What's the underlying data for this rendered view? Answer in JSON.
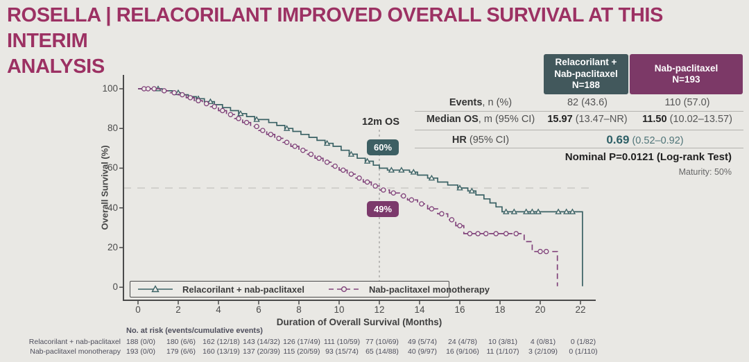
{
  "title": {
    "line1": "ROSELLA | RELACORILANT IMPROVED OVERALL SURVIVAL AT THIS INTERIM",
    "line2": "ANALYSIS"
  },
  "colors": {
    "background": "#e9e8e4",
    "title": "#9c3163",
    "teal": "#3a6164",
    "purple": "#80427a",
    "teal_header_bg": "#42585c",
    "purple_header_bg": "#7c3967",
    "badge_teal_bg": "#3d5f63",
    "badge_purple_bg": "#7b396b",
    "hr_value": "#2d5f66"
  },
  "stats_table": {
    "columns": [
      {
        "name_lines": [
          "Relacorilant +",
          "Nab-paclitaxel"
        ],
        "n": "N=188",
        "color": "#42585c"
      },
      {
        "name_lines": [
          "Nab-paclitaxel"
        ],
        "n": "N=193",
        "color": "#7c3967"
      }
    ],
    "rows": {
      "events": {
        "label_bold": "Events",
        "label_rest": ", n (%)",
        "col1": "82 (43.6)",
        "col2": "110 (57.0)"
      },
      "median": {
        "label_bold": "Median OS",
        "label_rest": ", m (95% CI)",
        "col1_num": "15.97",
        "col1_ci": "(13.47–NR)",
        "col2_num": "11.50",
        "col2_ci": "(10.02–13.57)"
      },
      "hr": {
        "label_bold": "HR",
        "label_rest": " (95% CI)",
        "value": "0.69",
        "ci": "(0.52–0.92)"
      }
    },
    "pvalue": "Nominal P=0.0121 (Log-rank Test)",
    "maturity": "Maturity: 50%"
  },
  "chart_data": {
    "type": "line",
    "subtype": "kaplan-meier-step",
    "title": "",
    "xlabel": "Duration of Overall Survival (Months)",
    "ylabel": "Overall Survival (%)",
    "xlim": [
      0,
      23.4
    ],
    "ylim": [
      0,
      100
    ],
    "xticks": [
      0,
      2,
      4,
      6,
      8,
      10,
      12,
      14,
      16,
      18,
      20,
      22
    ],
    "yticks": [
      0,
      20,
      40,
      60,
      80,
      100
    ],
    "grid": false,
    "reference_line": {
      "y": 50,
      "style": "dashed"
    },
    "annotation": {
      "label": "12m OS",
      "x": 12,
      "values": [
        {
          "series": "Relacorilant + nab-paclitaxel",
          "text": "60%",
          "pct": 60
        },
        {
          "series": "Nab-paclitaxel monotherapy",
          "text": "49%",
          "pct": 49
        }
      ]
    },
    "legend_position": "bottom-inside",
    "series": [
      {
        "name": "Relacorilant + nab-paclitaxel",
        "color": "#3a6164",
        "style": "solid",
        "marker": "triangle",
        "points": [
          [
            0,
            100
          ],
          [
            1.2,
            99
          ],
          [
            1.7,
            98
          ],
          [
            2.1,
            97
          ],
          [
            2.5,
            96
          ],
          [
            2.9,
            95
          ],
          [
            3.3,
            93.5
          ],
          [
            3.8,
            92
          ],
          [
            4.2,
            90.5
          ],
          [
            4.6,
            89
          ],
          [
            5.0,
            87.5
          ],
          [
            5.4,
            86
          ],
          [
            5.8,
            84.5
          ],
          [
            6.5,
            83
          ],
          [
            6.9,
            81.5
          ],
          [
            7.3,
            80
          ],
          [
            7.7,
            78.5
          ],
          [
            8.1,
            77
          ],
          [
            8.5,
            75.5
          ],
          [
            8.9,
            74
          ],
          [
            9.3,
            72.5
          ],
          [
            9.7,
            71
          ],
          [
            10.1,
            69
          ],
          [
            10.5,
            67
          ],
          [
            10.9,
            65
          ],
          [
            11.3,
            63.5
          ],
          [
            11.7,
            61.5
          ],
          [
            12.0,
            60
          ],
          [
            12.4,
            59
          ],
          [
            13.5,
            58
          ],
          [
            13.9,
            56.5
          ],
          [
            14.4,
            55
          ],
          [
            14.9,
            53
          ],
          [
            15.4,
            51.5
          ],
          [
            15.9,
            50
          ],
          [
            16.4,
            48.5
          ],
          [
            16.8,
            46.5
          ],
          [
            17.2,
            44.5
          ],
          [
            17.5,
            42.5
          ],
          [
            17.8,
            40.5
          ],
          [
            18.1,
            38
          ]
        ],
        "censor": [
          [
            1.0,
            100
          ],
          [
            2.0,
            98
          ],
          [
            3.0,
            95
          ],
          [
            3.6,
            93.5
          ],
          [
            5.1,
            87.5
          ],
          [
            5.9,
            84.5
          ],
          [
            7.4,
            80
          ],
          [
            9.4,
            72.5
          ],
          [
            10.6,
            67
          ],
          [
            11.4,
            63.5
          ],
          [
            12.6,
            59
          ],
          [
            13.1,
            59
          ],
          [
            13.7,
            58
          ],
          [
            14.6,
            55
          ],
          [
            16.0,
            50
          ],
          [
            16.6,
            48.5
          ],
          [
            18.3,
            38
          ],
          [
            18.7,
            38
          ],
          [
            19.3,
            38
          ],
          [
            19.6,
            38
          ],
          [
            19.9,
            38
          ],
          [
            20.9,
            38
          ],
          [
            21.3,
            38
          ],
          [
            21.6,
            38
          ]
        ],
        "end_drop": {
          "x": 22.1,
          "to": 0.5,
          "style": "solid"
        }
      },
      {
        "name": "Nab-paclitaxel monotherapy",
        "color": "#80427a",
        "style": "dashed",
        "marker": "circle",
        "points": [
          [
            0,
            100
          ],
          [
            1.1,
            99
          ],
          [
            1.6,
            98
          ],
          [
            2.0,
            97
          ],
          [
            2.4,
            95.5
          ],
          [
            2.8,
            94
          ],
          [
            3.2,
            92.5
          ],
          [
            3.6,
            91
          ],
          [
            4.0,
            89
          ],
          [
            4.4,
            87
          ],
          [
            4.8,
            85
          ],
          [
            5.2,
            83
          ],
          [
            5.6,
            81
          ],
          [
            6.0,
            79
          ],
          [
            6.4,
            77
          ],
          [
            6.8,
            75
          ],
          [
            7.2,
            73
          ],
          [
            7.6,
            71
          ],
          [
            8.0,
            69
          ],
          [
            8.4,
            67
          ],
          [
            8.8,
            65
          ],
          [
            9.2,
            63
          ],
          [
            9.6,
            61
          ],
          [
            10.0,
            59
          ],
          [
            10.4,
            57
          ],
          [
            10.8,
            55
          ],
          [
            11.2,
            53
          ],
          [
            11.6,
            51
          ],
          [
            12.0,
            49
          ],
          [
            12.5,
            47.5
          ],
          [
            13.0,
            46
          ],
          [
            13.4,
            44
          ],
          [
            13.9,
            42
          ],
          [
            14.4,
            39.5
          ],
          [
            14.9,
            37
          ],
          [
            15.4,
            34
          ],
          [
            15.8,
            31
          ],
          [
            16.2,
            27
          ],
          [
            19.2,
            23
          ],
          [
            19.6,
            18
          ]
        ],
        "censor": [
          [
            0.3,
            100
          ],
          [
            0.5,
            100
          ],
          [
            0.8,
            100
          ],
          [
            1.3,
            99
          ],
          [
            1.8,
            98
          ],
          [
            2.2,
            97
          ],
          [
            2.6,
            95.5
          ],
          [
            3.0,
            94
          ],
          [
            3.4,
            92.5
          ],
          [
            3.8,
            91
          ],
          [
            4.2,
            89
          ],
          [
            4.6,
            87
          ],
          [
            5.0,
            85
          ],
          [
            5.4,
            83
          ],
          [
            5.9,
            81
          ],
          [
            6.2,
            79
          ],
          [
            6.6,
            77
          ],
          [
            7.0,
            75
          ],
          [
            7.4,
            73
          ],
          [
            7.8,
            71
          ],
          [
            8.2,
            69
          ],
          [
            8.6,
            67
          ],
          [
            9.0,
            65
          ],
          [
            9.4,
            63
          ],
          [
            9.8,
            61
          ],
          [
            10.2,
            59
          ],
          [
            10.6,
            57
          ],
          [
            11.0,
            55
          ],
          [
            11.4,
            53
          ],
          [
            11.8,
            51
          ],
          [
            12.2,
            49
          ],
          [
            12.7,
            47.5
          ],
          [
            13.2,
            46
          ],
          [
            13.6,
            44
          ],
          [
            14.1,
            42
          ],
          [
            14.6,
            39.5
          ],
          [
            15.1,
            37
          ],
          [
            15.6,
            34
          ],
          [
            16.0,
            31
          ],
          [
            16.5,
            27
          ],
          [
            16.9,
            27
          ],
          [
            17.3,
            27
          ],
          [
            17.8,
            27
          ],
          [
            18.3,
            27
          ],
          [
            18.8,
            27
          ],
          [
            20.0,
            18
          ],
          [
            20.3,
            18
          ]
        ],
        "end_drop": {
          "x": 20.85,
          "to": 0.5,
          "style": "dashed"
        }
      }
    ],
    "at_risk": {
      "header": "No. at risk (events/cumulative events)",
      "months": [
        0,
        2,
        4,
        6,
        8,
        10,
        12,
        14,
        16,
        18,
        20,
        22
      ],
      "rows": [
        {
          "label": "Relacorilant + nab-paclitaxel",
          "values": [
            "188 (0/0)",
            "180 (6/6)",
            "162 (12/18)",
            "143 (14/32)",
            "126 (17/49)",
            "111 (10/59)",
            "77 (10/69)",
            "49 (5/74)",
            "24 (4/78)",
            "10 (3/81)",
            "4 (0/81)",
            "0 (1/82)"
          ]
        },
        {
          "label": "Nab-paclitaxel monotherapy",
          "values": [
            "193 (0/0)",
            "179 (6/6)",
            "160 (13/19)",
            "137 (20/39)",
            "115 (20/59)",
            "93 (15/74)",
            "65 (14/88)",
            "40 (9/97)",
            "16 (9/106)",
            "11 (1/107)",
            "3 (2/109)",
            "0 (1/110)"
          ]
        }
      ]
    }
  }
}
